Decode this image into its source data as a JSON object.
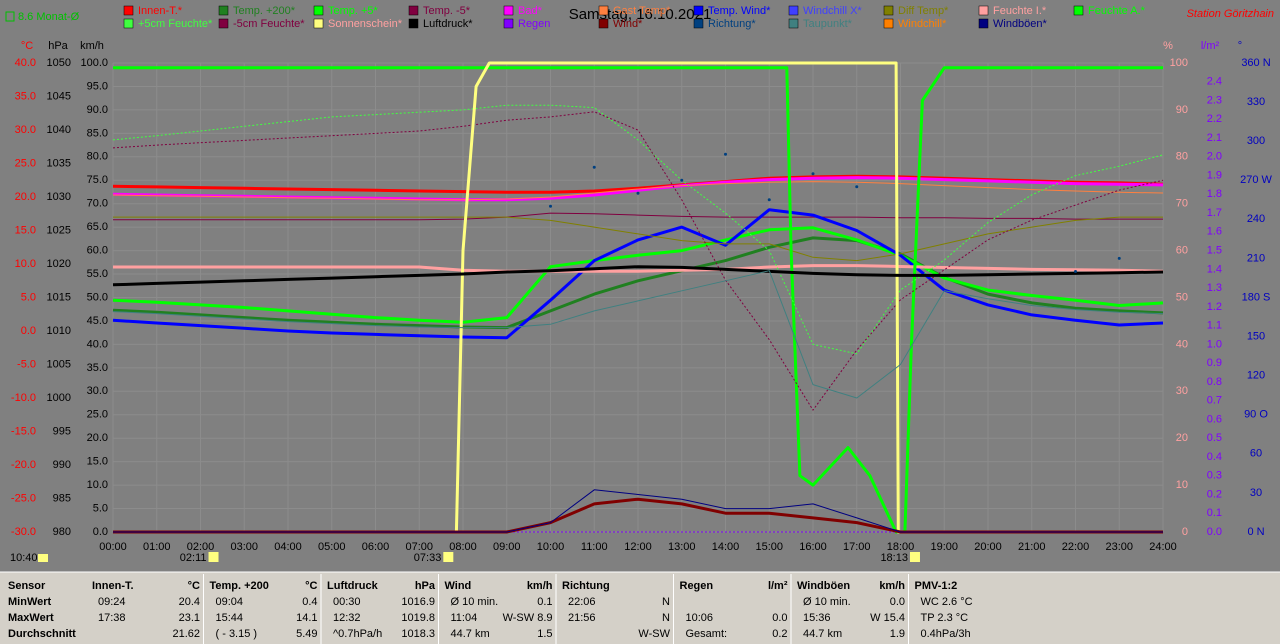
{
  "chart_data": {
    "type": "line",
    "title": "Samstag, 16.10.2021",
    "station": "Station Göritzhain",
    "month_avg": "8.6 Monat-Ø",
    "markers": [
      "10:40",
      "02:11",
      "07:33",
      "18:13"
    ],
    "grid": true,
    "x": [
      0,
      1,
      2,
      3,
      4,
      5,
      6,
      7,
      8,
      9,
      10,
      11,
      12,
      13,
      14,
      15,
      16,
      17,
      18,
      19,
      20,
      21,
      22,
      23,
      24
    ],
    "xlim": [
      0,
      24
    ],
    "xticks": [
      {
        "value": 0,
        "label": "00:00"
      },
      {
        "value": 1,
        "label": "01:00"
      },
      {
        "value": 2,
        "label": "02:00"
      },
      {
        "value": 3,
        "label": "03:00"
      },
      {
        "value": 4,
        "label": "04:00"
      },
      {
        "value": 5,
        "label": "05:00"
      },
      {
        "value": 6,
        "label": "06:00"
      },
      {
        "value": 7,
        "label": "07:00"
      },
      {
        "value": 8,
        "label": "08:00"
      },
      {
        "value": 9,
        "label": "09:00"
      },
      {
        "value": 10,
        "label": "10:00"
      },
      {
        "value": 11,
        "label": "11:00"
      },
      {
        "value": 12,
        "label": "12:00"
      },
      {
        "value": 13,
        "label": "13:00"
      },
      {
        "value": 14,
        "label": "14:00"
      },
      {
        "value": 15,
        "label": "15:00"
      },
      {
        "value": 16,
        "label": "16:00"
      },
      {
        "value": 17,
        "label": "17:00"
      },
      {
        "value": 18,
        "label": "18:00"
      },
      {
        "value": 19,
        "label": "19:00"
      },
      {
        "value": 20,
        "label": "20:00"
      },
      {
        "value": 21,
        "label": "21:00"
      },
      {
        "value": 22,
        "label": "22:00"
      },
      {
        "value": 23,
        "label": "23:00"
      },
      {
        "value": 24,
        "label": "24:00"
      }
    ],
    "ylabel": "°C",
    "ylim": [
      -30,
      40
    ],
    "yticks": [
      {
        "value": 40,
        "label": "40.0"
      },
      {
        "value": 35,
        "label": "35.0"
      },
      {
        "value": 30,
        "label": "30.0"
      },
      {
        "value": 25,
        "label": "25.0"
      },
      {
        "value": 20,
        "label": "20.0"
      },
      {
        "value": 15,
        "label": "15.0"
      },
      {
        "value": 10,
        "label": "10.0"
      },
      {
        "value": 5,
        "label": "5.0"
      },
      {
        "value": 0,
        "label": "0.0"
      },
      {
        "value": -5,
        "label": "-5.0"
      },
      {
        "value": -10,
        "label": "-10.0"
      },
      {
        "value": -15,
        "label": "-15.0"
      },
      {
        "value": -20,
        "label": "-20.0"
      },
      {
        "value": -25,
        "label": "-25.0"
      },
      {
        "value": -30,
        "label": "-30.0"
      }
    ],
    "y2label": "hPa",
    "y2lim": [
      980,
      1050
    ],
    "y2ticks": [
      1050,
      1045,
      1040,
      1035,
      1030,
      1025,
      1020,
      1015,
      1010,
      1005,
      1000,
      995,
      990,
      985,
      980
    ],
    "y3label": "km/h",
    "y3lim": [
      0,
      100
    ],
    "y3ticks": [
      {
        "value": 100,
        "label": "100.0"
      },
      {
        "value": 95,
        "label": "95.0"
      },
      {
        "value": 90,
        "label": "90.0"
      },
      {
        "value": 85,
        "label": "85.0"
      },
      {
        "value": 80,
        "label": "80.0"
      },
      {
        "value": 75,
        "label": "75.0"
      },
      {
        "value": 70,
        "label": "70.0"
      },
      {
        "value": 65,
        "label": "65.0"
      },
      {
        "value": 60,
        "label": "60.0"
      },
      {
        "value": 55,
        "label": "55.0"
      },
      {
        "value": 50,
        "label": "50.0"
      },
      {
        "value": 45,
        "label": "45.0"
      },
      {
        "value": 40,
        "label": "40.0"
      },
      {
        "value": 35,
        "label": "35.0"
      },
      {
        "value": 30,
        "label": "30.0"
      },
      {
        "value": 25,
        "label": "25.0"
      },
      {
        "value": 20,
        "label": "20.0"
      },
      {
        "value": 15,
        "label": "15.0"
      },
      {
        "value": 10,
        "label": "10.0"
      },
      {
        "value": 5,
        "label": "5.0"
      },
      {
        "value": 0,
        "label": "0.0"
      }
    ],
    "y4label": "%",
    "y4lim": [
      0,
      100
    ],
    "y4ticks": [
      100,
      90,
      80,
      70,
      60,
      50,
      40,
      30,
      20,
      10,
      0
    ],
    "y5label": "l/m²",
    "y5lim": [
      0,
      2.5
    ],
    "y5ticks": [
      2.4,
      2.3,
      2.2,
      2.1,
      {
        "value": 2,
        "label": "2.0"
      },
      1.9,
      1.8,
      1.7,
      1.6,
      1.5,
      1.4,
      1.3,
      1.2,
      1.1,
      {
        "value": 1,
        "label": "1.0"
      },
      0.9,
      0.8,
      0.7,
      0.6,
      0.5,
      0.4,
      0.3,
      0.2,
      0.1,
      {
        "value": 0,
        "label": "0.0"
      }
    ],
    "y6label": "°",
    "y6lim": [
      0,
      360
    ],
    "y6ticks": [
      {
        "value": 360,
        "label": "360 N"
      },
      330,
      300,
      {
        "value": 270,
        "label": "270 W"
      },
      240,
      210,
      {
        "value": 180,
        "label": "180 S"
      },
      150,
      120,
      {
        "value": 90,
        "label": "90 O"
      },
      60,
      30,
      {
        "value": 0,
        "label": "0 N"
      }
    ],
    "series": [
      {
        "name": "Innen-T.*",
        "color": "#ff0000",
        "axis": "y",
        "thick": true,
        "values": [
          21.6,
          21.5,
          21.4,
          21.3,
          21.2,
          21.1,
          21.0,
          20.9,
          20.8,
          20.7,
          20.7,
          20.9,
          21.3,
          21.8,
          22.3,
          22.8,
          23.0,
          23.1,
          23.0,
          22.8,
          22.6,
          22.4,
          22.2,
          22.1,
          21.9
        ]
      },
      {
        "name": "Temp. +200*",
        "color": "#208020",
        "axis": "y",
        "thick": true,
        "values": [
          3.1,
          2.8,
          2.4,
          2.0,
          1.6,
          1.3,
          1.0,
          0.8,
          0.6,
          0.5,
          3.0,
          5.5,
          7.5,
          9.0,
          10.5,
          12.5,
          13.9,
          13.5,
          11.5,
          8.0,
          5.5,
          4.2,
          3.4,
          3.0,
          2.7
        ]
      },
      {
        "name": "Temp. +5*",
        "color": "#00ff00",
        "axis": "y",
        "thick": true,
        "values": [
          4.6,
          4.3,
          3.9,
          3.5,
          3.0,
          2.5,
          2.0,
          1.6,
          1.3,
          2.0,
          9.6,
          10.5,
          11.3,
          12.0,
          13.6,
          15.1,
          15.4,
          13.6,
          11.3,
          7.9,
          6.1,
          5.3,
          4.6,
          3.8,
          4.2
        ]
      },
      {
        "name": "Temp. -5*",
        "color": "#800040",
        "axis": "y",
        "values": [
          16.6,
          16.6,
          16.6,
          16.6,
          16.6,
          16.6,
          16.6,
          16.6,
          16.7,
          17.0,
          17.6,
          17.5,
          17.3,
          17.1,
          17.0,
          17.0,
          17.0,
          17.0,
          16.9,
          16.9,
          16.8,
          16.8,
          16.7,
          16.7,
          16.7
        ]
      },
      {
        "name": "Bad*",
        "color": "#ff00ff",
        "axis": "y",
        "thick": true,
        "values": [
          20.4,
          20.3,
          20.2,
          20.1,
          20.0,
          19.9,
          19.8,
          19.7,
          19.6,
          19.6,
          19.8,
          20.3,
          21.0,
          21.7,
          22.2,
          22.6,
          22.8,
          22.9,
          22.8,
          22.6,
          22.4,
          22.2,
          22.0,
          21.9,
          21.8
        ]
      },
      {
        "name": "Gast Temp*",
        "color": "#ff8040",
        "axis": "y",
        "values": [
          20.3,
          20.2,
          20.1,
          20.0,
          19.9,
          19.8,
          19.7,
          19.6,
          19.6,
          19.7,
          20.0,
          20.6,
          21.2,
          21.7,
          22.0,
          22.2,
          22.3,
          22.2,
          22.0,
          21.7,
          21.4,
          21.1,
          20.9,
          20.7,
          20.6
        ]
      },
      {
        "name": "Temp. Wind*",
        "color": "#0000ff",
        "axis": "y",
        "thick": true,
        "values": [
          1.6,
          1.2,
          0.8,
          0.4,
          0.0,
          -0.3,
          -0.5,
          -0.7,
          -0.9,
          -1.0,
          4.6,
          10.5,
          13.6,
          15.5,
          12.8,
          18.1,
          17.3,
          15.0,
          11.3,
          6.1,
          3.9,
          2.4,
          1.6,
          0.9,
          1.2
        ]
      },
      {
        "name": "Windchill X*",
        "color": "#4040ff",
        "axis": "y",
        "values": [
          null,
          null,
          null,
          null,
          null,
          null,
          null,
          null,
          null,
          null,
          null,
          null,
          null,
          null,
          null,
          null,
          null,
          null,
          null,
          null,
          null,
          null,
          null,
          null,
          null
        ]
      },
      {
        "name": "Diff Temp*",
        "color": "#808000",
        "axis": "y",
        "values": [
          17.0,
          17.0,
          17.0,
          17.0,
          17.0,
          17.0,
          17.0,
          17.0,
          17.0,
          17.0,
          16.5,
          15.5,
          14.5,
          13.5,
          13.0,
          13.0,
          11.0,
          10.5,
          11.5,
          13.0,
          14.5,
          15.5,
          16.5,
          17.0,
          17.0
        ]
      },
      {
        "name": "Feuchte I.*",
        "color": "#ffa0a0",
        "axis": "y4",
        "thick": true,
        "values": [
          56.5,
          56.5,
          56.5,
          56.5,
          56.5,
          56.5,
          56.5,
          56.5,
          55.8,
          55.6,
          55.6,
          55.6,
          55.6,
          55.8,
          56.0,
          56.5,
          56.8,
          56.8,
          56.6,
          56.4,
          56.2,
          56.0,
          55.9,
          55.8,
          55.6
        ]
      },
      {
        "name": "Feuchte A.*",
        "color": "#00ff00",
        "axis": "y4",
        "thick": true,
        "x": [
          0,
          15.4,
          15.5,
          15.7,
          16.0,
          16.5,
          16.8,
          17.3,
          17.9,
          18.1,
          18.25,
          18.5,
          19,
          24
        ],
        "values": [
          99,
          99,
          60,
          12,
          10,
          15,
          18,
          12,
          0,
          0,
          40,
          92,
          99,
          99
        ]
      },
      {
        "name": "+5cm Feuchte*",
        "color": "#40ff40",
        "axis": "y4",
        "dotted": true,
        "values": [
          83.6,
          84.5,
          85.5,
          86.5,
          87.5,
          88.5,
          89.0,
          89.5,
          90.0,
          91.0,
          91.0,
          90.5,
          83.6,
          75.0,
          68.0,
          60.0,
          40.0,
          38.0,
          51.6,
          58.0,
          66.0,
          71.9,
          76.0,
          78.0,
          80.4
        ]
      },
      {
        "name": "-5cm Feuchte*",
        "color": "#800040",
        "axis": "y4",
        "dotted": true,
        "values": [
          81.9,
          82.5,
          83.0,
          83.5,
          84.0,
          84.5,
          85.0,
          85.5,
          86.5,
          87.8,
          88.5,
          89.6,
          85.7,
          70.8,
          53.7,
          41.0,
          26.0,
          38.8,
          49.5,
          55.9,
          62.3,
          66.5,
          69.7,
          72.9,
          75.0
        ]
      },
      {
        "name": "Sonnenschein*",
        "color": "#ffff80",
        "axis": "y4",
        "thick": true,
        "x": [
          0,
          7.85,
          8.0,
          8.3,
          8.6,
          17.9,
          17.95,
          24
        ],
        "values": [
          0,
          0,
          60,
          95,
          100,
          100,
          0,
          0
        ]
      },
      {
        "name": "Luftdruck*",
        "color": "#000000",
        "axis": "y2",
        "thick": true,
        "values": [
          1016.9,
          1017.1,
          1017.3,
          1017.5,
          1017.7,
          1017.9,
          1018.1,
          1018.3,
          1018.5,
          1018.8,
          1019.0,
          1019.3,
          1019.6,
          1019.5,
          1019.2,
          1018.9,
          1018.6,
          1018.4,
          1018.3,
          1018.3,
          1018.4,
          1018.5,
          1018.6,
          1018.7,
          1018.8
        ]
      },
      {
        "name": "Regen",
        "color": "#8000ff",
        "axis": "y5",
        "dotted": true,
        "values": [
          0,
          0,
          0,
          0,
          0,
          0,
          0,
          0,
          0,
          0,
          0,
          0,
          0,
          0,
          0,
          0,
          0,
          0,
          0,
          0,
          0,
          0,
          0,
          0,
          0
        ]
      },
      {
        "name": "Wind*",
        "color": "#800000",
        "axis": "y3",
        "thick": true,
        "values": [
          0,
          0,
          0,
          0,
          0,
          0,
          0,
          0,
          0,
          0,
          2,
          6,
          7,
          6,
          4,
          4,
          3,
          2,
          0,
          0,
          0,
          0,
          0,
          0,
          0
        ]
      },
      {
        "name": "Richtung*",
        "color": "#004080",
        "axis": "y6",
        "dots": true,
        "values": [
          null,
          null,
          null,
          null,
          null,
          null,
          null,
          null,
          null,
          null,
          250,
          280,
          260,
          270,
          290,
          255,
          275,
          265,
          null,
          null,
          null,
          null,
          200,
          210,
          null
        ]
      },
      {
        "name": "Taupunkt*",
        "color": "#408080",
        "axis": "y",
        "values": [
          2.9,
          2.6,
          2.2,
          1.8,
          1.4,
          1.1,
          0.8,
          0.6,
          0.5,
          0.5,
          1.0,
          3.0,
          4.5,
          6.0,
          7.5,
          9.0,
          -8.0,
          -10.0,
          -5.0,
          6.0,
          4.8,
          3.8,
          3.2,
          2.8,
          2.6
        ]
      },
      {
        "name": "Windchill*",
        "color": "#ff8000",
        "axis": "y",
        "values": [
          null,
          null,
          null,
          null,
          null,
          null,
          null,
          null,
          null,
          null,
          null,
          null,
          null,
          null,
          null,
          null,
          null,
          null,
          null,
          null,
          null,
          null,
          null,
          null,
          null
        ]
      },
      {
        "name": "Windböen*",
        "color": "#000080",
        "axis": "y3",
        "values": [
          0,
          0,
          0,
          0,
          0,
          0,
          0,
          0,
          0,
          0,
          2,
          9,
          8,
          7,
          5,
          5,
          6,
          3,
          0,
          0,
          0,
          0,
          0,
          0,
          0
        ]
      }
    ]
  },
  "table": {
    "row_labels": [
      "Sensor",
      "MinWert",
      "MaxWert",
      "Durchschnitt"
    ],
    "columns": [
      {
        "head": {
          "l": "Innen-T.",
          "r": "°C"
        },
        "cells": [
          {
            "l": "09:24",
            "r": "20.4"
          },
          {
            "l": "17:38",
            "r": "23.1"
          },
          {
            "r": "21.62"
          }
        ]
      },
      {
        "head": {
          "l": "Temp. +200",
          "r": "°C"
        },
        "cells": [
          {
            "l": "09:04",
            "r": "0.4"
          },
          {
            "l": "15:44",
            "r": "14.1"
          },
          {
            "l": "( - 3.15 )",
            "r": "5.49"
          }
        ]
      },
      {
        "head": {
          "l": "Luftdruck",
          "r": "hPa"
        },
        "cells": [
          {
            "l": "00:30",
            "r": "1016.9"
          },
          {
            "l": "12:32",
            "r": "1019.8"
          },
          {
            "l": "^0.7hPa/h",
            "r": "1018.3"
          }
        ]
      },
      {
        "head": {
          "l": "Wind",
          "r": "km/h"
        },
        "cells": [
          {
            "l": "Ø 10 min.",
            "r": "0.1"
          },
          {
            "l": "11:04",
            "r": "W-SW 8.9"
          },
          {
            "l": "44.7 km",
            "r": "1.5"
          }
        ]
      },
      {
        "head": {
          "l": "Richtung"
        },
        "cells": [
          {
            "l": "22:06",
            "r": "N"
          },
          {
            "l": "21:56",
            "r": "N"
          },
          {
            "r": "W-SW"
          }
        ]
      },
      {
        "head": {
          "l": "Regen",
          "r": "l/m²"
        },
        "cells": [
          {},
          {
            "l": "10:06",
            "r": "0.0"
          },
          {
            "l": "Gesamt:",
            "r": "0.2"
          }
        ]
      },
      {
        "head": {
          "l": "Windböen",
          "r": "km/h"
        },
        "cells": [
          {
            "l": "Ø 10 min.",
            "r": "0.0"
          },
          {
            "l": "15:36",
            "r": "W 15.4"
          },
          {
            "l": "44.7 km",
            "r": "1.9"
          }
        ]
      },
      {
        "head": {
          "l": "PMV-1:2"
        },
        "cells": [
          {
            "l": "WC 2.6 °C"
          },
          {
            "l": "TP 2.3 °C"
          },
          {
            "l": "0.4hPa/3h"
          }
        ]
      }
    ]
  }
}
